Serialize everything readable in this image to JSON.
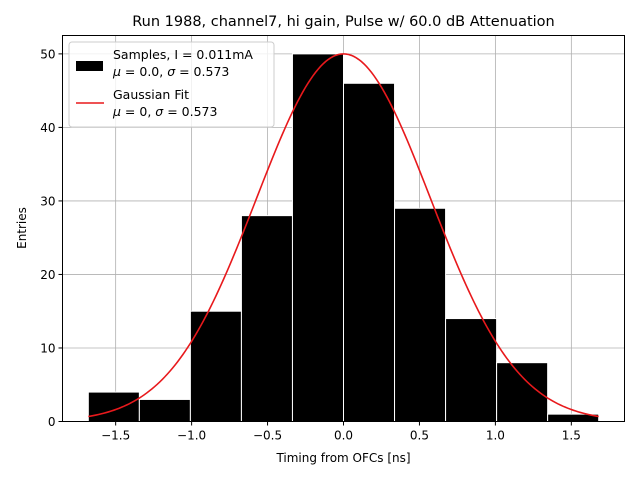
{
  "chart_data": {
    "type": "bar",
    "title": "Run 1988, channel7, hi gain, Pulse w/ 60.0 dB Attenuation",
    "xlabel": "Timing from OFCs [ns]",
    "ylabel": "Entries",
    "xlim": [
      -1.85,
      1.85
    ],
    "ylim": [
      0,
      52.5
    ],
    "xticks": [
      -1.5,
      -1.0,
      -0.5,
      0.0,
      0.5,
      1.0,
      1.5
    ],
    "xtick_labels": [
      "−1.5",
      "−1.0",
      "−0.5",
      "0.0",
      "0.5",
      "1.0",
      "1.5"
    ],
    "yticks": [
      0,
      10,
      20,
      30,
      40,
      50
    ],
    "ytick_labels": [
      "0",
      "10",
      "20",
      "30",
      "40",
      "50"
    ],
    "grid": true,
    "bin_edges": [
      -1.68,
      -1.344,
      -1.008,
      -0.672,
      -0.336,
      0.0,
      0.336,
      0.672,
      1.008,
      1.344,
      1.68
    ],
    "counts": [
      4,
      3,
      15,
      28,
      50,
      46,
      29,
      14,
      8,
      1
    ],
    "bar_color": "#000000",
    "bar_edge_color": "#ffffff",
    "fit": {
      "mu": 0.0,
      "sigma": 0.573,
      "amplitude": 50,
      "x_range": [
        -1.68,
        1.68
      ],
      "color": "#e8191c"
    },
    "legend": {
      "location": "top-left",
      "entries": [
        {
          "kind": "patch",
          "line1": "Samples, I = 0.011mA",
          "sym1": "μ",
          "val1": " = 0.0, ",
          "sym2": "σ",
          "val2": " = 0.573"
        },
        {
          "kind": "line",
          "line1": "Gaussian Fit",
          "sym1": "μ",
          "val1": " = 0, ",
          "sym2": "σ",
          "val2": " = 0.573"
        }
      ]
    }
  }
}
